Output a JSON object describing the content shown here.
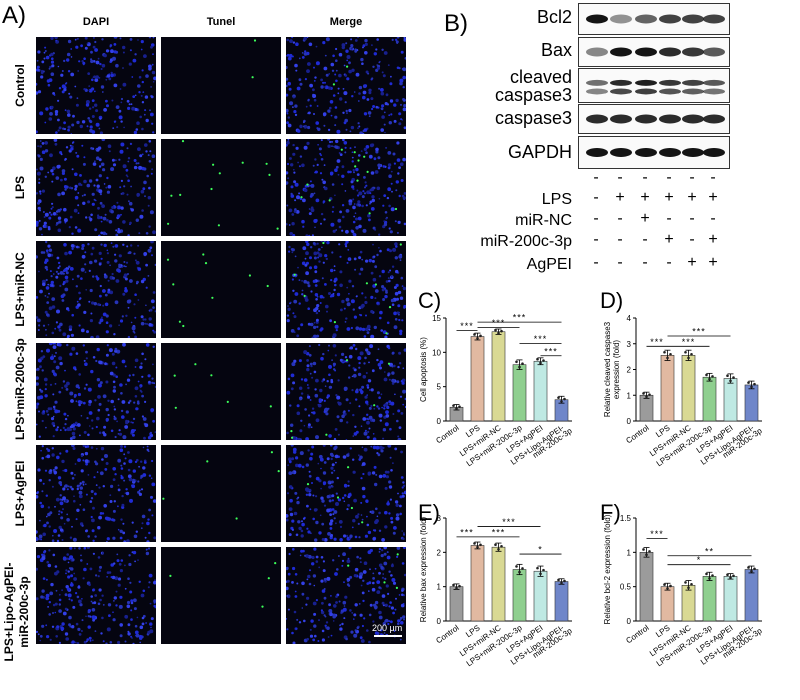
{
  "panelA": {
    "letter": "A)",
    "columns": [
      "DAPI",
      "Tunel",
      "Merge"
    ],
    "rows": [
      "Control",
      "LPS",
      "LPS+miR-NC",
      "LPS+miR-200c-3p",
      "LPS+AgPEI",
      "LPS+Lipo-AgPEI-\nmiR-200c-3p"
    ],
    "scale_bar": "200 μm"
  },
  "panelB": {
    "letter": "B)",
    "bands": [
      "Bcl2",
      "Bax",
      "cleaved\ncaspase3",
      "caspase3",
      "GAPDH"
    ],
    "treatments": [
      {
        "name": "",
        "signs": [
          "-",
          "-",
          "-",
          "-",
          "-",
          "-"
        ]
      },
      {
        "name": "LPS",
        "signs": [
          "-",
          "+",
          "+",
          "+",
          "+",
          "+"
        ]
      },
      {
        "name": "miR-NC",
        "signs": [
          "-",
          "-",
          "+",
          "-",
          "-",
          "-"
        ]
      },
      {
        "name": "miR-200c-3p",
        "signs": [
          "-",
          "-",
          "-",
          "+",
          "-",
          "+"
        ]
      },
      {
        "name": "AgPEI",
        "signs": [
          "-",
          "-",
          "-",
          "-",
          "+",
          "+"
        ]
      }
    ]
  },
  "chart_data": [
    {
      "id": "C",
      "letter": "C)",
      "type": "bar",
      "ylabel": "Cell apoptosis (%)",
      "ylim": [
        0,
        15
      ],
      "yticks": [
        0,
        5,
        10,
        15
      ],
      "categories": [
        "Control",
        "LPS",
        "LPS+miR-NC",
        "LPS+miR-200c-3p",
        "LPS+AgPEI",
        "LPS+Lipo-AgPEI-\nmiR-200c-3p"
      ],
      "values": [
        2.0,
        12.3,
        13.0,
        8.2,
        8.7,
        3.1
      ],
      "errors": [
        0.4,
        0.5,
        0.4,
        0.7,
        0.5,
        0.5
      ],
      "colors": [
        "#9b9b9b",
        "#e1b9a1",
        "#d9d994",
        "#8fcf8f",
        "#bfe9e3",
        "#6f86c9"
      ],
      "sig": [
        {
          "from": 0,
          "to": 1,
          "y": 13.2,
          "label": "***"
        },
        {
          "from": 1,
          "to": 5,
          "y": 14.4,
          "label": "***"
        },
        {
          "from": 1,
          "to": 3,
          "y": 13.6,
          "label": "***"
        },
        {
          "from": 3,
          "to": 5,
          "y": 11.3,
          "label": "***"
        },
        {
          "from": 4,
          "to": 5,
          "y": 9.5,
          "label": "***"
        }
      ]
    },
    {
      "id": "D",
      "letter": "D)",
      "type": "bar",
      "ylabel": "Relative cleaved caspase3\nexpression (fold)",
      "ylim": [
        0,
        4
      ],
      "yticks": [
        0,
        1,
        2,
        3,
        4
      ],
      "categories": [
        "Control",
        "LPS",
        "LPS+miR-NC",
        "LPS+miR-200c-3p",
        "LPS+AgPEI",
        "LPS+Lipo-AgPEI-\nmiR-200c-3p"
      ],
      "values": [
        1.0,
        2.55,
        2.55,
        1.7,
        1.65,
        1.4
      ],
      "errors": [
        0.12,
        0.2,
        0.2,
        0.15,
        0.18,
        0.15
      ],
      "colors": [
        "#9b9b9b",
        "#e1b9a1",
        "#d9d994",
        "#8fcf8f",
        "#bfe9e3",
        "#6f86c9"
      ],
      "sig": [
        {
          "from": 0,
          "to": 1,
          "y": 2.9,
          "label": "***"
        },
        {
          "from": 1,
          "to": 4,
          "y": 3.3,
          "label": "***"
        },
        {
          "from": 1,
          "to": 3,
          "y": 2.9,
          "label": "***"
        }
      ]
    },
    {
      "id": "E",
      "letter": "E)",
      "type": "bar",
      "ylabel": "Relative bax expression (fold)",
      "ylim": [
        0,
        3
      ],
      "yticks": [
        0,
        1,
        2,
        3
      ],
      "categories": [
        "Control",
        "LPS",
        "LPS+miR-NC",
        "LPS+miR-200c-3p",
        "LPS+AgPEI",
        "LPS+Lipo-AgPEI-\nmiR-200c-3p"
      ],
      "values": [
        1.0,
        2.2,
        2.15,
        1.5,
        1.45,
        1.15
      ],
      "errors": [
        0.08,
        0.1,
        0.12,
        0.15,
        0.15,
        0.08
      ],
      "colors": [
        "#9b9b9b",
        "#e1b9a1",
        "#d9d994",
        "#8fcf8f",
        "#bfe9e3",
        "#6f86c9"
      ],
      "sig": [
        {
          "from": 0,
          "to": 1,
          "y": 2.45,
          "label": "***"
        },
        {
          "from": 1,
          "to": 4,
          "y": 2.75,
          "label": "***"
        },
        {
          "from": 1,
          "to": 3,
          "y": 2.45,
          "label": "***"
        },
        {
          "from": 3,
          "to": 5,
          "y": 1.95,
          "label": "*"
        }
      ]
    },
    {
      "id": "F",
      "letter": "F)",
      "type": "bar",
      "ylabel": "Relative bcl-2 expression (fold)",
      "ylim": [
        0,
        1.5
      ],
      "yticks": [
        0.0,
        0.5,
        1.0,
        1.5
      ],
      "categories": [
        "Control",
        "LPS",
        "LPS+miR-NC",
        "LPS+miR-200c-3p",
        "LPS+AgPEI",
        "LPS+Lipo-AgPEI-\nmiR-200c-3p"
      ],
      "values": [
        1.0,
        0.5,
        0.52,
        0.65,
        0.65,
        0.75
      ],
      "errors": [
        0.07,
        0.05,
        0.07,
        0.06,
        0.04,
        0.05
      ],
      "colors": [
        "#9b9b9b",
        "#e1b9a1",
        "#d9d994",
        "#8fcf8f",
        "#bfe9e3",
        "#6f86c9"
      ],
      "sig": [
        {
          "from": 0,
          "to": 1,
          "y": 1.2,
          "label": "***"
        },
        {
          "from": 1,
          "to": 5,
          "y": 0.95,
          "label": "**"
        },
        {
          "from": 1,
          "to": 4,
          "y": 0.82,
          "label": "*"
        }
      ]
    }
  ]
}
